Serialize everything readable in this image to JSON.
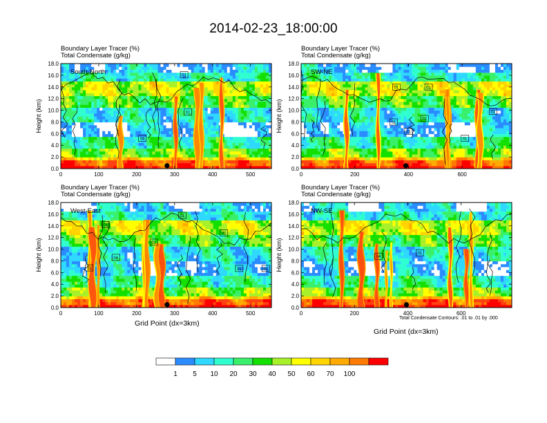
{
  "title": "2014-02-23_18:00:00",
  "colors": {
    "levels": [
      "#ffffff",
      "#2a8cff",
      "#2fd8ff",
      "#30ffd0",
      "#3af06b",
      "#14e000",
      "#a8f02a",
      "#ffff00",
      "#ffd400",
      "#ffaa00",
      "#ff7a00",
      "#ff4010",
      "#ff0000"
    ],
    "contour": "#000000"
  },
  "chart_data": [
    {
      "type": "heatmap",
      "panel_label": "South-North",
      "title_line1": "Boundary Layer Tracer    (%)",
      "title_line2": "Total Condensate    (g/kg)",
      "ylabel": "Height (km)",
      "xlabel": "",
      "xlim": [
        0,
        555
      ],
      "xticks": [
        0,
        100,
        200,
        300,
        400,
        500
      ],
      "xtick_labels": [
        "0",
        "100",
        "200",
        "300",
        "400",
        "500"
      ],
      "ylim": [
        0,
        18
      ],
      "yticks": [
        0,
        2,
        4,
        6,
        8,
        10,
        12,
        14,
        16,
        18
      ],
      "ytick_labels": [
        "0.0",
        "2.0",
        "4.0",
        "6.0",
        "8.0",
        "10.0",
        "12.0",
        "14.0",
        "16.0",
        "18.0"
      ],
      "marker_x": 280,
      "contour_labels": [
        {
          "x": 325,
          "y": 16.1,
          "text": "01"
        },
        {
          "x": 335,
          "y": 9.7,
          "text": "01"
        },
        {
          "x": 215,
          "y": 5.2,
          "text": "04"
        }
      ]
    },
    {
      "type": "heatmap",
      "panel_label": "SW-NE",
      "title_line1": "Boundary Layer Tracer    (%)",
      "title_line2": "Total Condensate    (g/kg)",
      "ylabel": "Height (km)",
      "xlabel": "",
      "xlim": [
        0,
        785
      ],
      "xticks": [
        0,
        200,
        400,
        600
      ],
      "xtick_labels": [
        "0",
        "200",
        "400",
        "600"
      ],
      "ylim": [
        0,
        18
      ],
      "yticks": [
        0,
        2,
        4,
        6,
        8,
        10,
        12,
        14,
        16,
        18
      ],
      "ytick_labels": [
        "0.0",
        "2.0",
        "4.0",
        "6.0",
        "8.0",
        "10.0",
        "12.0",
        "14.0",
        "16.0",
        "18.0"
      ],
      "marker_x": 390,
      "contour_labels": [
        {
          "x": 355,
          "y": 14.0,
          "text": "01"
        },
        {
          "x": 475,
          "y": 14.0,
          "text": "01"
        },
        {
          "x": 345,
          "y": 8.0,
          "text": "01"
        },
        {
          "x": 400,
          "y": 6.4,
          "text": "01"
        },
        {
          "x": 460,
          "y": 8.6,
          "text": "02"
        },
        {
          "x": 610,
          "y": 5.2,
          "text": "01"
        },
        {
          "x": 715,
          "y": 9.8,
          "text": "01"
        }
      ]
    },
    {
      "type": "heatmap",
      "panel_label": "West-East",
      "title_line1": "Boundary Layer Tracer    (%)",
      "title_line2": "Total Condensate    (g/kg)",
      "ylabel": "Height (km)",
      "xlabel": "Grid Point (dx=3km)",
      "xlim": [
        0,
        555
      ],
      "xticks": [
        0,
        100,
        200,
        300,
        400,
        500
      ],
      "xtick_labels": [
        "0",
        "100",
        "200",
        "300",
        "400",
        "500"
      ],
      "ylim": [
        0,
        18
      ],
      "yticks": [
        0,
        2,
        4,
        6,
        8,
        10,
        12,
        14,
        16,
        18
      ],
      "ytick_labels": [
        "0.0",
        "2.0",
        "4.0",
        "6.0",
        "8.0",
        "10.0",
        "12.0",
        "14.0",
        "16.0",
        "18.0"
      ],
      "marker_x": 280,
      "contour_labels": [
        {
          "x": 118,
          "y": 14.2,
          "text": "01"
        },
        {
          "x": 320,
          "y": 15.8,
          "text": "01"
        },
        {
          "x": 245,
          "y": 11.2,
          "text": "01"
        },
        {
          "x": 145,
          "y": 8.6,
          "text": "04"
        },
        {
          "x": 75,
          "y": 6.8,
          "text": "01"
        },
        {
          "x": 430,
          "y": 12.8,
          "text": "01"
        },
        {
          "x": 470,
          "y": 6.7,
          "text": "01"
        },
        {
          "x": 540,
          "y": 6.7,
          "text": "01"
        }
      ]
    },
    {
      "type": "heatmap",
      "panel_label": "NW-SE",
      "title_line1": "Boundary Layer Tracer    (%)",
      "title_line2": "Total Condensate    (g/kg)",
      "ylabel": "Height (km)",
      "xlabel": "Grid Point (dx=3km)",
      "xlim": [
        0,
        790
      ],
      "xticks": [
        0,
        200,
        400,
        600
      ],
      "xtick_labels": [
        "0",
        "200",
        "400",
        "600"
      ],
      "ylim": [
        0,
        18
      ],
      "yticks": [
        0,
        2,
        4,
        6,
        8,
        10,
        12,
        14,
        16,
        18
      ],
      "ytick_labels": [
        "0.0",
        "2.0",
        "4.0",
        "6.0",
        "8.0",
        "10.0",
        "12.0",
        "14.0",
        "16.0",
        "18.0"
      ],
      "marker_x": 395,
      "note": "Total Condensate Contours: .01 to .01 by .000",
      "contour_labels": [
        {
          "x": 290,
          "y": 8.8,
          "text": "04"
        },
        {
          "x": 445,
          "y": 9.4,
          "text": "01"
        }
      ]
    }
  ],
  "colorbar": {
    "labels": [
      "1",
      "5",
      "10",
      "20",
      "30",
      "40",
      "50",
      "60",
      "70",
      "100"
    ],
    "colors": [
      "#ffffff",
      "#2a8cff",
      "#2fd8ff",
      "#30ffd0",
      "#3af06b",
      "#14e000",
      "#a8f02a",
      "#ffff00",
      "#ffd400",
      "#ffaa00",
      "#ff7a00",
      "#ff0000"
    ]
  }
}
